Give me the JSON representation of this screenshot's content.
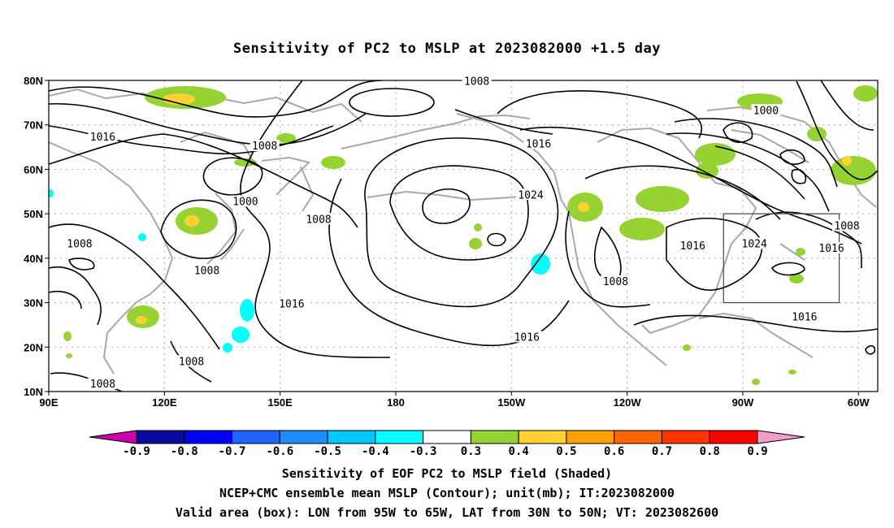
{
  "title": "Sensitivity of PC2 to MSLP at 2023082000 +1.5 day",
  "map": {
    "lon_range": [
      90,
      305
    ],
    "lat_range": [
      10,
      80
    ],
    "lat_ticks": [
      {
        "value": 80,
        "label": "80N"
      },
      {
        "value": 70,
        "label": "70N"
      },
      {
        "value": 60,
        "label": "60N"
      },
      {
        "value": 50,
        "label": "50N"
      },
      {
        "value": 40,
        "label": "40N"
      },
      {
        "value": 30,
        "label": "30N"
      },
      {
        "value": 20,
        "label": "20N"
      },
      {
        "value": 10,
        "label": "10N"
      }
    ],
    "lon_ticks": [
      {
        "value": 90,
        "label": "90E"
      },
      {
        "value": 120,
        "label": "120E"
      },
      {
        "value": 150,
        "label": "150E"
      },
      {
        "value": 180,
        "label": "180"
      },
      {
        "value": 210,
        "label": "150W"
      },
      {
        "value": 240,
        "label": "120W"
      },
      {
        "value": 270,
        "label": "90W"
      },
      {
        "value": 300,
        "label": "60W"
      }
    ],
    "valid_box": {
      "lon": [
        265,
        295
      ],
      "lat": [
        30,
        50
      ]
    },
    "contour_labels": [
      {
        "text": "1008",
        "lon": 201,
        "lat": 79.5
      },
      {
        "text": "1000",
        "lon": 276,
        "lat": 73
      },
      {
        "text": "1016",
        "lon": 104,
        "lat": 67
      },
      {
        "text": "1008",
        "lon": 146,
        "lat": 65
      },
      {
        "text": "1016",
        "lon": 217,
        "lat": 65.5
      },
      {
        "text": "1024",
        "lon": 215,
        "lat": 54
      },
      {
        "text": "1000",
        "lon": 141,
        "lat": 52.5
      },
      {
        "text": "1008",
        "lon": 160,
        "lat": 48.5
      },
      {
        "text": "1008",
        "lon": 297,
        "lat": 47
      },
      {
        "text": "1008",
        "lon": 98,
        "lat": 43
      },
      {
        "text": "1024",
        "lon": 273,
        "lat": 43
      },
      {
        "text": "1016",
        "lon": 257,
        "lat": 42.5
      },
      {
        "text": "1016",
        "lon": 293,
        "lat": 42
      },
      {
        "text": "1008",
        "lon": 131,
        "lat": 37
      },
      {
        "text": "1008",
        "lon": 237,
        "lat": 34.5
      },
      {
        "text": "1016",
        "lon": 153,
        "lat": 29.5
      },
      {
        "text": "1016",
        "lon": 286,
        "lat": 26.5
      },
      {
        "text": "1016",
        "lon": 214,
        "lat": 22
      },
      {
        "text": "1008",
        "lon": 127,
        "lat": 16.5
      },
      {
        "text": "1008",
        "lon": 104,
        "lat": 11.5
      }
    ]
  },
  "colorbar": {
    "labels": [
      "-0.9",
      "-0.8",
      "-0.7",
      "-0.6",
      "-0.5",
      "-0.4",
      "-0.3",
      "0.3",
      "0.4",
      "0.5",
      "0.6",
      "0.7",
      "0.8",
      "0.9"
    ],
    "colors": [
      "#cc00aa",
      "#0a0aa0",
      "#0000ff",
      "#1e64ff",
      "#1e8cff",
      "#00c8ff",
      "#00ffff",
      "#ffffff",
      "#96d232",
      "#ffd232",
      "#ffa000",
      "#ff6400",
      "#ff3200",
      "#ff0000",
      "#f0a0c8"
    ]
  },
  "caption": {
    "line1": "Sensitivity of EOF PC2 to MSLP field (Shaded)",
    "line2": "NCEP+CMC ensemble mean MSLP (Contour); unit(mb); IT:2023082000",
    "line3": "Valid area (box): LON from 95W to 65W, LAT from 30N to 50N; VT: 2023082600"
  }
}
